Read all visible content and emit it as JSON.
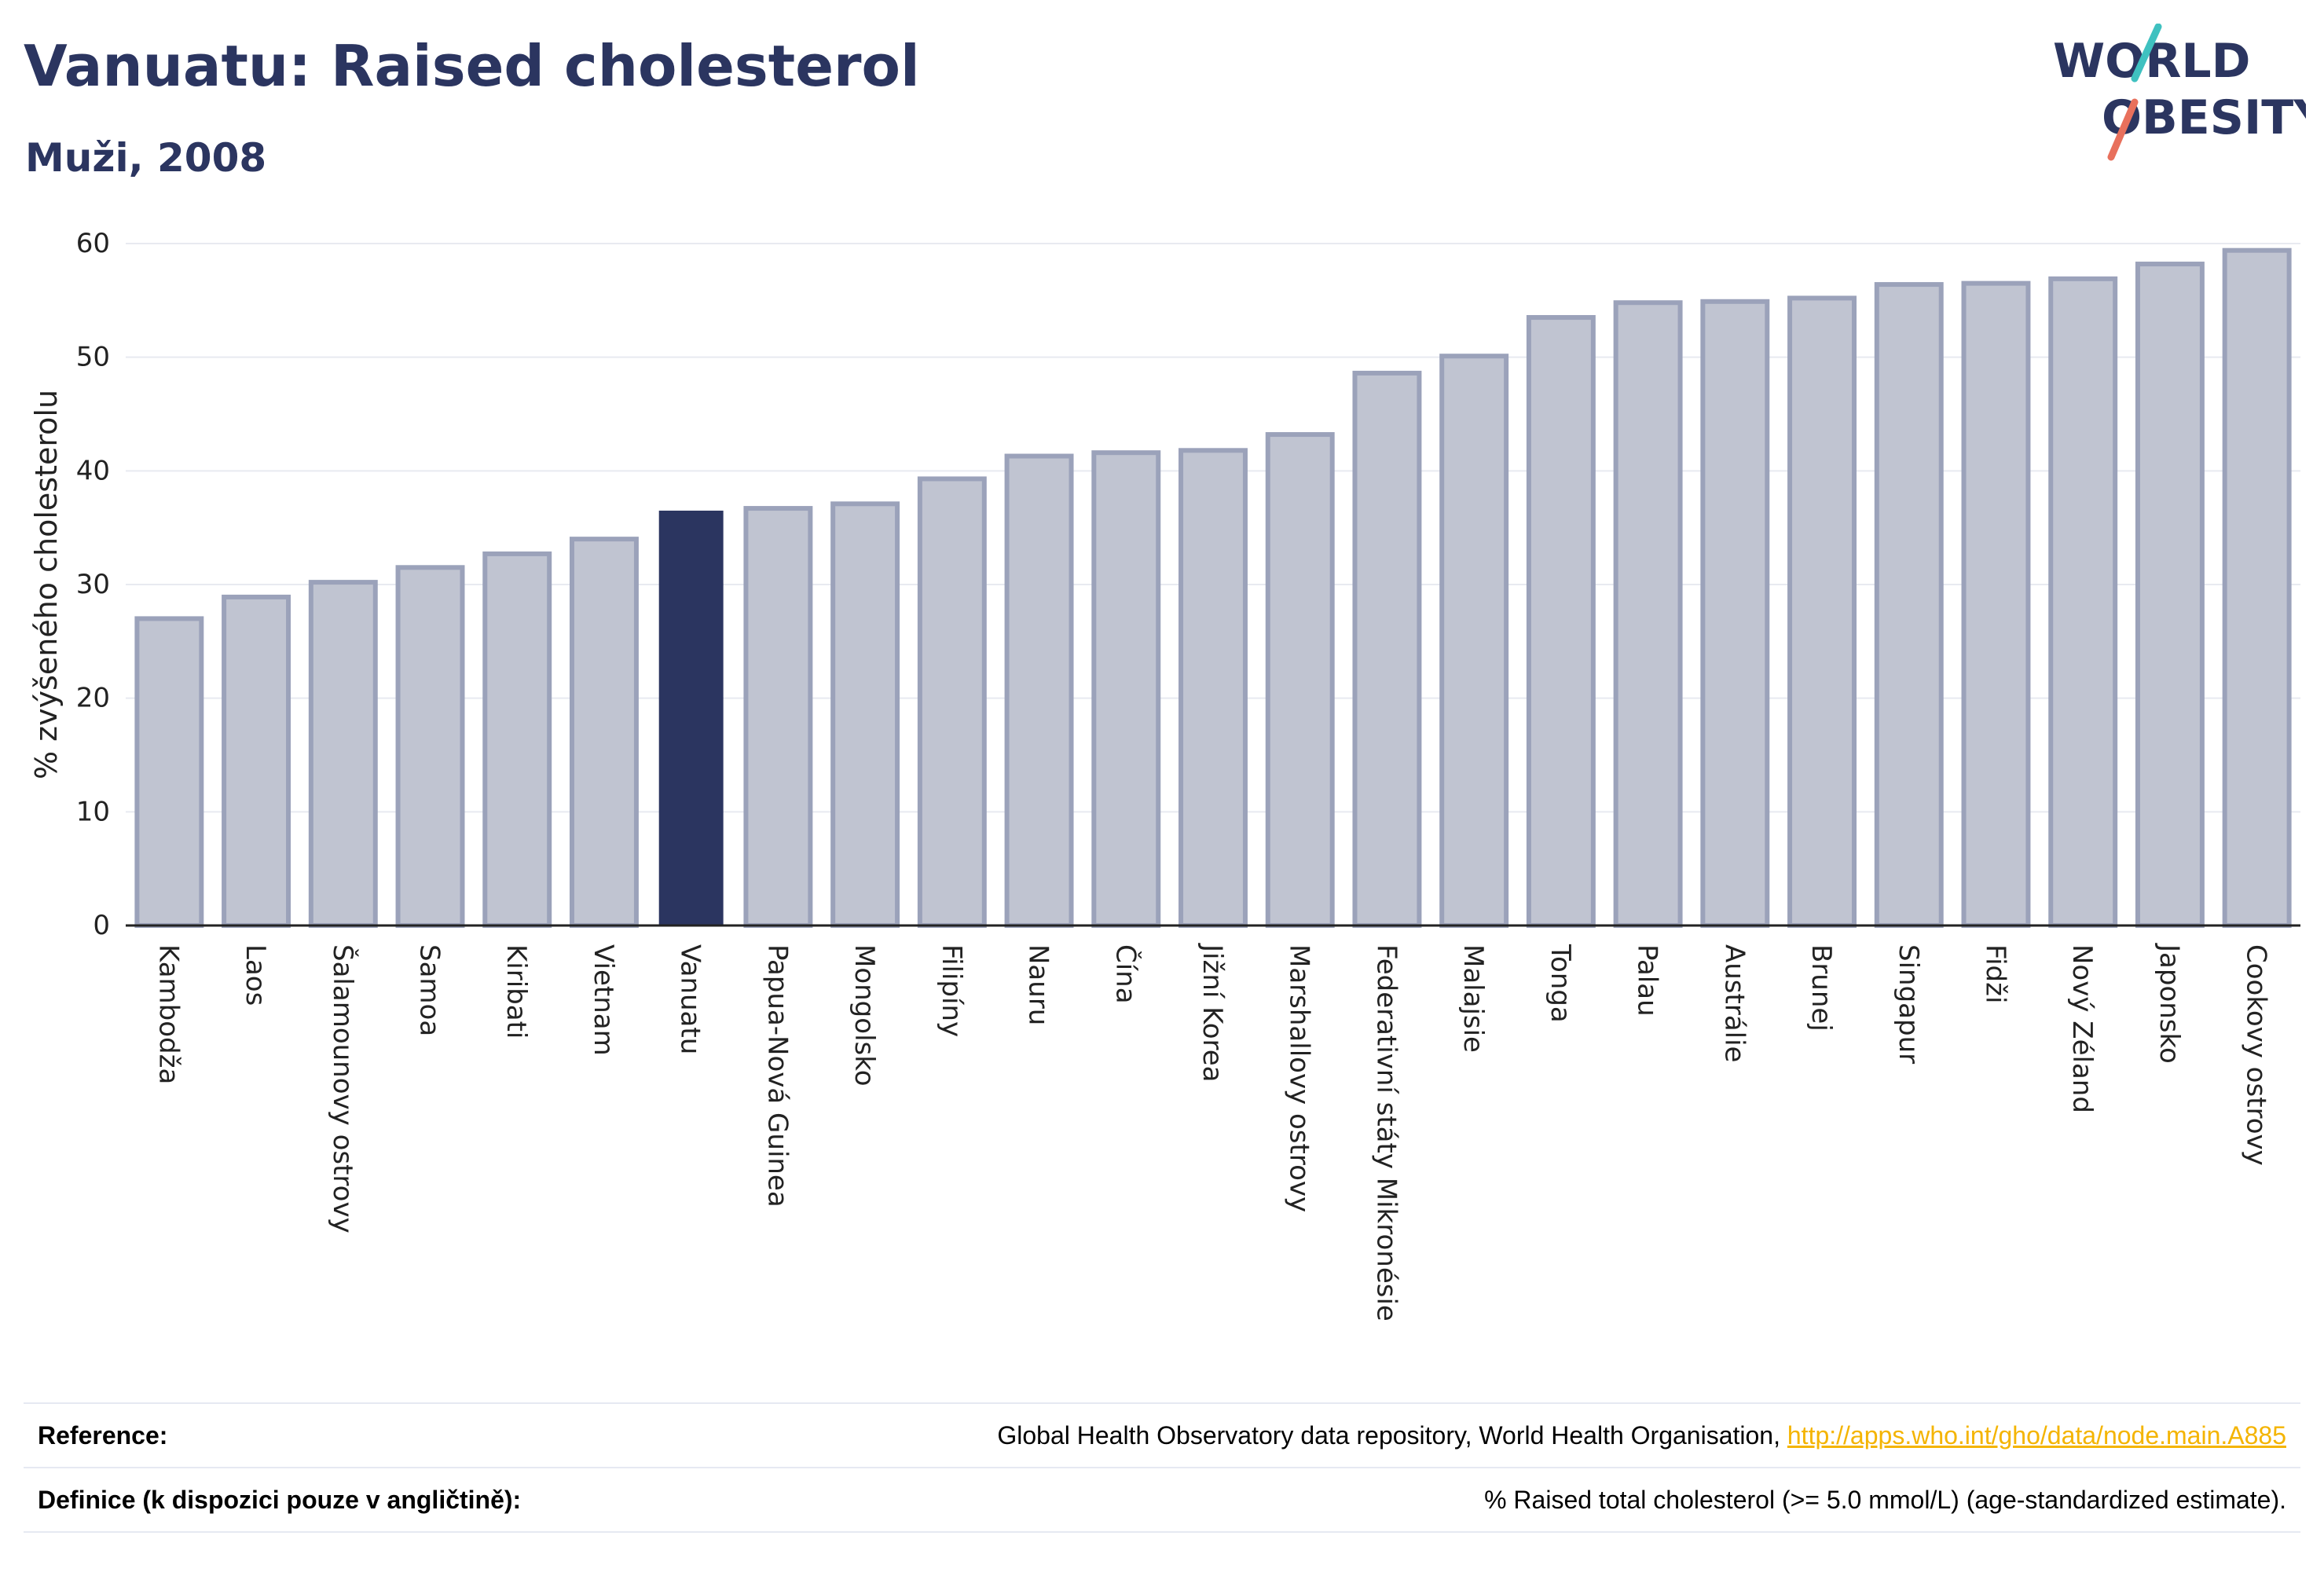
{
  "title": "Vanuatu: Raised cholesterol",
  "subtitle": "Muži, 2008",
  "logo": {
    "line1": "WORLD",
    "line2": "OBESITY"
  },
  "colors": {
    "highlight": "#2b3560",
    "bar_fill": "#c0c4d1",
    "bar_stroke": "#9ba2ba",
    "text_dark": "#2b3560",
    "link": "#f4b400",
    "accent_teal": "#3fc1c0",
    "accent_coral": "#e8705c"
  },
  "footer": {
    "reference_label": "Reference:",
    "reference_text": "Global Health Observatory data repository, World Health Organisation, ",
    "reference_link": "http://apps.who.int/gho/data/node.main.A885",
    "definition_label": "Definice (k dispozici pouze v angličtině):",
    "definition_text": "% Raised total cholesterol (>= 5.0 mmol/L) (age-standardized estimate)."
  },
  "chart_data": {
    "type": "bar",
    "ylabel": "% zvýšeného cholesterolu",
    "ylim": [
      0,
      60
    ],
    "yticks": [
      0,
      10,
      20,
      30,
      40,
      50,
      60
    ],
    "grid": true,
    "highlight": "Vanuatu",
    "categories": [
      "Kambodža",
      "Laos",
      "Šalamounovy ostrovy",
      "Samoa",
      "Kiribati",
      "Vietnam",
      "Vanuatu",
      "Papua-Nová Guinea",
      "Mongolsko",
      "Filipíny",
      "Nauru",
      "Čína",
      "Jižní Korea",
      "Marshallovy ostrovy",
      "Federativní státy Mikronésie",
      "Malajsie",
      "Tonga",
      "Palau",
      "Austrálie",
      "Brunej",
      "Singapur",
      "Fidži",
      "Nový Zéland",
      "Japonsko",
      "Cookovy ostrovy"
    ],
    "values": [
      27.0,
      28.9,
      30.2,
      31.5,
      32.7,
      34.0,
      36.5,
      36.7,
      37.1,
      39.3,
      41.3,
      41.6,
      41.8,
      43.2,
      48.6,
      50.1,
      53.5,
      54.8,
      54.9,
      55.2,
      56.4,
      56.5,
      56.9,
      58.2,
      59.4
    ]
  }
}
